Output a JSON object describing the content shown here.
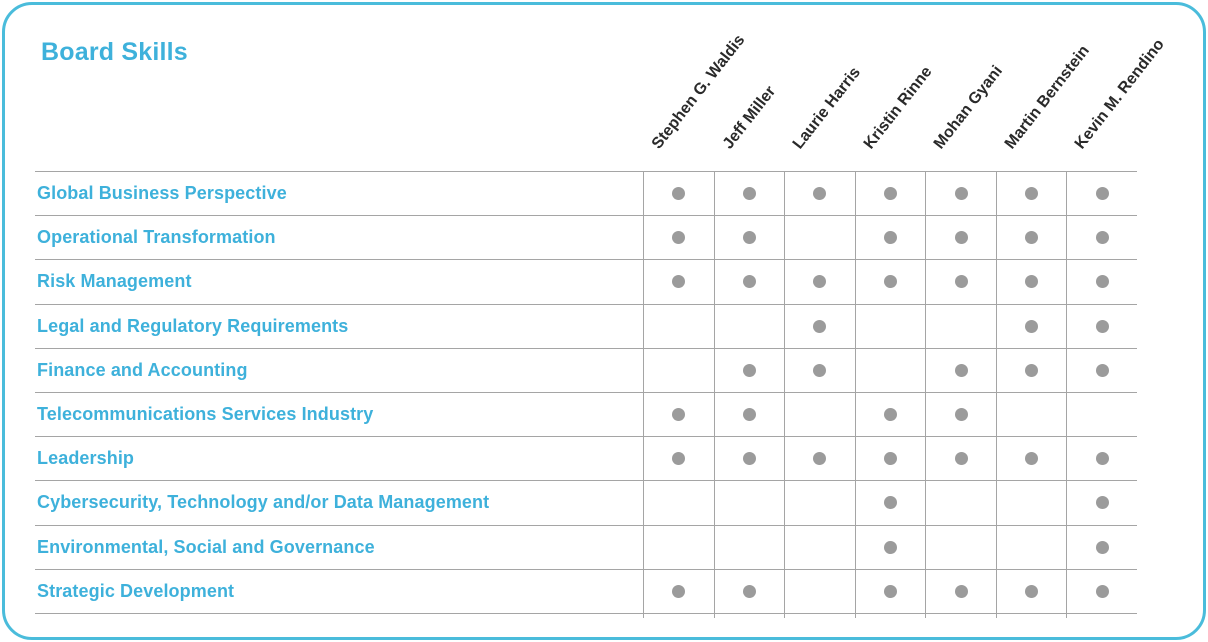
{
  "title": "Board Skills",
  "colors": {
    "accent": "#3EB1DB",
    "card_border": "#4ABCDB",
    "dot": "#9B9B9B",
    "grid_line": "#A5A5A5",
    "member_name_text": "#2A2A2A"
  },
  "members": [
    "Stephen G. Waldis",
    "Jeff Miller",
    "Laurie Harris",
    "Kristin Rinne",
    "Mohan Gyani",
    "Martin Bernstein",
    "Kevin M. Rendino"
  ],
  "skills": [
    {
      "label": "Global Business Perspective",
      "dots": [
        1,
        1,
        1,
        1,
        1,
        1,
        1
      ]
    },
    {
      "label": "Operational Transformation",
      "dots": [
        1,
        1,
        0,
        1,
        1,
        1,
        1
      ]
    },
    {
      "label": "Risk Management",
      "dots": [
        1,
        1,
        1,
        1,
        1,
        1,
        1
      ]
    },
    {
      "label": "Legal and Regulatory Requirements",
      "dots": [
        0,
        0,
        1,
        0,
        0,
        1,
        1
      ]
    },
    {
      "label": "Finance and Accounting",
      "dots": [
        0,
        1,
        1,
        0,
        1,
        1,
        1
      ]
    },
    {
      "label": "Telecommunications Services Industry",
      "dots": [
        1,
        1,
        0,
        1,
        1,
        0,
        0
      ]
    },
    {
      "label": "Leadership",
      "dots": [
        1,
        1,
        1,
        1,
        1,
        1,
        1
      ]
    },
    {
      "label": "Cybersecurity, Technology and/or Data Management",
      "dots": [
        0,
        0,
        0,
        1,
        0,
        0,
        1
      ]
    },
    {
      "label": "Environmental, Social and Governance",
      "dots": [
        0,
        0,
        0,
        1,
        0,
        0,
        1
      ]
    },
    {
      "label": "Strategic Development",
      "dots": [
        1,
        1,
        0,
        1,
        1,
        1,
        1
      ]
    }
  ],
  "chart_data": {
    "type": "table",
    "title": "Board Skills",
    "columns": [
      "Stephen G. Waldis",
      "Jeff Miller",
      "Laurie Harris",
      "Kristin Rinne",
      "Mohan Gyani",
      "Martin Bernstein",
      "Kevin M. Rendino"
    ],
    "rows": [
      "Global Business Perspective",
      "Operational Transformation",
      "Risk Management",
      "Legal and Regulatory Requirements",
      "Finance and Accounting",
      "Telecommunications Services Industry",
      "Leadership",
      "Cybersecurity, Technology and/or Data Management",
      "Environmental, Social and Governance",
      "Strategic Development"
    ],
    "matrix": [
      [
        1,
        1,
        1,
        1,
        1,
        1,
        1
      ],
      [
        1,
        1,
        0,
        1,
        1,
        1,
        1
      ],
      [
        1,
        1,
        1,
        1,
        1,
        1,
        1
      ],
      [
        0,
        0,
        1,
        0,
        0,
        1,
        1
      ],
      [
        0,
        1,
        1,
        0,
        1,
        1,
        1
      ],
      [
        1,
        1,
        0,
        1,
        1,
        0,
        0
      ],
      [
        1,
        1,
        1,
        1,
        1,
        1,
        1
      ],
      [
        0,
        0,
        0,
        1,
        0,
        0,
        1
      ],
      [
        0,
        0,
        0,
        1,
        0,
        0,
        1
      ],
      [
        1,
        1,
        0,
        1,
        1,
        1,
        1
      ]
    ],
    "marker": "gray dot = skill held",
    "legend_position": "none",
    "grid": true
  }
}
